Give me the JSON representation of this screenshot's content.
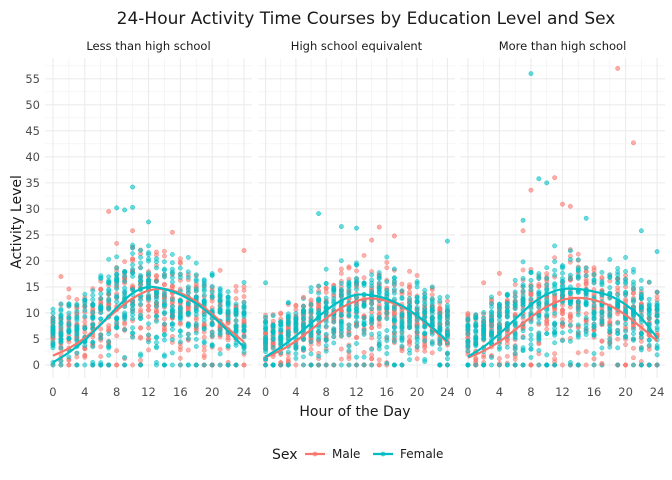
{
  "chart_data": {
    "type": "scatter",
    "title": "24-Hour Activity Time Courses by Education Level and Sex",
    "xlabel": "Hour of the Day",
    "ylabel": "Activity Level",
    "xlim": [
      -1,
      25
    ],
    "ylim": [
      -2.5,
      59
    ],
    "x_ticks": [
      0,
      4,
      8,
      12,
      16,
      20,
      24
    ],
    "y_ticks": [
      0,
      5,
      10,
      15,
      20,
      25,
      30,
      35,
      40,
      45,
      50,
      55
    ],
    "grid": true,
    "legend_position": "bottom",
    "legend_title": "Sex",
    "series": [
      {
        "name": "Male",
        "color": "#F8766D"
      },
      {
        "name": "Female",
        "color": "#00BFC4"
      }
    ],
    "panels": [
      {
        "label": "Less than high school",
        "smooth": {
          "Male": [
            [
              0,
              1.8
            ],
            [
              2,
              3.2
            ],
            [
              4,
              5.2
            ],
            [
              6,
              7.8
            ],
            [
              8,
              10.5
            ],
            [
              10,
              12.8
            ],
            [
              12,
              14.3
            ],
            [
              14,
              14.6
            ],
            [
              16,
              13.8
            ],
            [
              18,
              12.2
            ],
            [
              20,
              9.8
            ],
            [
              22,
              7.0
            ],
            [
              24,
              4.4
            ]
          ],
          "Female": [
            [
              0,
              0.5
            ],
            [
              2,
              2.4
            ],
            [
              4,
              4.8
            ],
            [
              6,
              7.8
            ],
            [
              8,
              11.0
            ],
            [
              10,
              13.8
            ],
            [
              12,
              15.0
            ],
            [
              14,
              14.6
            ],
            [
              16,
              13.5
            ],
            [
              18,
              11.8
            ],
            [
              20,
              9.4
            ],
            [
              22,
              6.5
            ],
            [
              24,
              3.4
            ]
          ]
        },
        "spread": [
          [
            0,
            4,
            14
          ],
          [
            2,
            5,
            16
          ],
          [
            4,
            7,
            18
          ],
          [
            6,
            11,
            23
          ],
          [
            8,
            14,
            28
          ],
          [
            10,
            16,
            31
          ],
          [
            12,
            17,
            30
          ],
          [
            14,
            16,
            28
          ],
          [
            16,
            15,
            26
          ],
          [
            18,
            14,
            24
          ],
          [
            20,
            13,
            23
          ],
          [
            22,
            11,
            21
          ],
          [
            24,
            9,
            19
          ]
        ],
        "outliers": [
          {
            "series": "Female",
            "x": 10,
            "y": 34.2
          },
          {
            "series": "Female",
            "x": 8,
            "y": 30.2
          },
          {
            "series": "Female",
            "x": 10,
            "y": 30.3
          },
          {
            "series": "Female",
            "x": 9,
            "y": 29.8
          },
          {
            "series": "Male",
            "x": 10,
            "y": 25.8
          },
          {
            "series": "Male",
            "x": 7,
            "y": 29.5
          },
          {
            "series": "Male",
            "x": 1,
            "y": 17.0
          },
          {
            "series": "Male",
            "x": 2,
            "y": 14.6
          },
          {
            "series": "Male",
            "x": 24,
            "y": 22.0
          },
          {
            "series": "Female",
            "x": 12,
            "y": 27.5
          },
          {
            "series": "Male",
            "x": 15,
            "y": 25.5
          }
        ]
      },
      {
        "label": "High school equivalent",
        "smooth": {
          "Male": [
            [
              0,
              1.5
            ],
            [
              2,
              2.8
            ],
            [
              4,
              4.6
            ],
            [
              6,
              6.8
            ],
            [
              8,
              9.0
            ],
            [
              10,
              11.0
            ],
            [
              12,
              12.3
            ],
            [
              14,
              12.8
            ],
            [
              16,
              12.3
            ],
            [
              18,
              11.2
            ],
            [
              20,
              9.4
            ],
            [
              22,
              7.0
            ],
            [
              24,
              4.3
            ]
          ],
          "Female": [
            [
              0,
              1.6
            ],
            [
              2,
              3.4
            ],
            [
              4,
              5.6
            ],
            [
              6,
              8.0
            ],
            [
              8,
              10.5
            ],
            [
              10,
              12.4
            ],
            [
              12,
              13.5
            ],
            [
              14,
              13.4
            ],
            [
              16,
              12.7
            ],
            [
              18,
              11.4
            ],
            [
              20,
              9.5
            ],
            [
              22,
              7.2
            ],
            [
              24,
              4.6
            ]
          ]
        },
        "spread": [
          [
            0,
            4,
            13
          ],
          [
            2,
            5,
            14
          ],
          [
            4,
            6,
            16
          ],
          [
            6,
            9,
            19
          ],
          [
            8,
            12,
            23
          ],
          [
            10,
            13,
            25
          ],
          [
            12,
            14,
            26
          ],
          [
            14,
            14,
            25
          ],
          [
            16,
            13,
            24
          ],
          [
            18,
            12,
            22
          ],
          [
            20,
            11,
            21
          ],
          [
            22,
            9,
            19
          ],
          [
            24,
            8,
            17
          ]
        ],
        "outliers": [
          {
            "series": "Female",
            "x": 7,
            "y": 29.1
          },
          {
            "series": "Female",
            "x": 10,
            "y": 26.6
          },
          {
            "series": "Female",
            "x": 12,
            "y": 26.3
          },
          {
            "series": "Female",
            "x": 0,
            "y": 15.8
          },
          {
            "series": "Male",
            "x": 14,
            "y": 24.0
          },
          {
            "series": "Male",
            "x": 17,
            "y": 24.8
          },
          {
            "series": "Male",
            "x": 5,
            "y": 13.0
          },
          {
            "series": "Female",
            "x": 24,
            "y": 23.8
          },
          {
            "series": "Male",
            "x": 15,
            "y": 26.5
          }
        ]
      },
      {
        "label": "More than high school",
        "smooth": {
          "Male": [
            [
              0,
              1.4
            ],
            [
              2,
              2.7
            ],
            [
              4,
              4.5
            ],
            [
              6,
              6.8
            ],
            [
              8,
              9.2
            ],
            [
              10,
              11.2
            ],
            [
              12,
              12.5
            ],
            [
              14,
              12.9
            ],
            [
              16,
              12.5
            ],
            [
              18,
              11.4
            ],
            [
              20,
              9.6
            ],
            [
              22,
              7.2
            ],
            [
              24,
              4.6
            ]
          ],
          "Female": [
            [
              0,
              1.6
            ],
            [
              2,
              3.5
            ],
            [
              4,
              6.0
            ],
            [
              6,
              8.8
            ],
            [
              8,
              11.6
            ],
            [
              10,
              13.6
            ],
            [
              12,
              14.6
            ],
            [
              14,
              14.6
            ],
            [
              16,
              14.1
            ],
            [
              18,
              13.3
            ],
            [
              20,
              11.6
            ],
            [
              22,
              9.0
            ],
            [
              24,
              5.2
            ]
          ]
        },
        "spread": [
          [
            0,
            5,
            14
          ],
          [
            2,
            6,
            15
          ],
          [
            4,
            8,
            18
          ],
          [
            6,
            12,
            22
          ],
          [
            8,
            16,
            26
          ],
          [
            10,
            18,
            28
          ],
          [
            12,
            19,
            28
          ],
          [
            14,
            18,
            27
          ],
          [
            16,
            17,
            26
          ],
          [
            18,
            16,
            25
          ],
          [
            20,
            15,
            24
          ],
          [
            22,
            13,
            22
          ],
          [
            24,
            11,
            20
          ]
        ],
        "outliers": [
          {
            "series": "Female",
            "x": 8,
            "y": 56.0
          },
          {
            "series": "Male",
            "x": 19,
            "y": 57.0
          },
          {
            "series": "Male",
            "x": 21,
            "y": 42.7
          },
          {
            "series": "Female",
            "x": 9,
            "y": 35.8
          },
          {
            "series": "Male",
            "x": 11,
            "y": 36.0
          },
          {
            "series": "Female",
            "x": 10,
            "y": 35.0
          },
          {
            "series": "Male",
            "x": 8,
            "y": 33.6
          },
          {
            "series": "Male",
            "x": 12,
            "y": 30.9
          },
          {
            "series": "Male",
            "x": 13,
            "y": 30.5
          },
          {
            "series": "Female",
            "x": 15,
            "y": 28.2
          },
          {
            "series": "Female",
            "x": 7,
            "y": 27.8
          },
          {
            "series": "Male",
            "x": 7,
            "y": 25.8
          },
          {
            "series": "Female",
            "x": 22,
            "y": 25.8
          },
          {
            "series": "Female",
            "x": 24,
            "y": 21.8
          },
          {
            "series": "Male",
            "x": 4,
            "y": 17.6
          },
          {
            "series": "Male",
            "x": 2,
            "y": 15.8
          },
          {
            "series": "Male",
            "x": 16,
            "y": 1.2
          },
          {
            "series": "Male",
            "x": 17,
            "y": 0.3
          }
        ]
      }
    ]
  }
}
